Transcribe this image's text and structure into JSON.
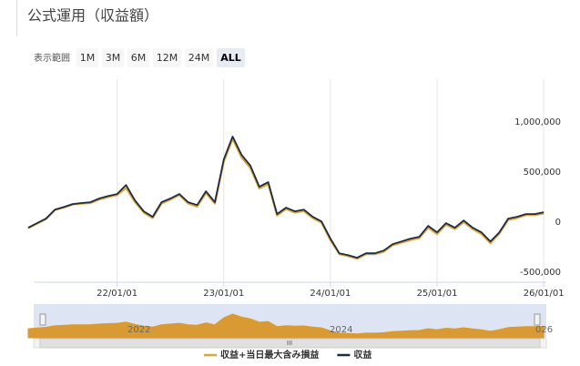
{
  "header": {
    "title": "公式運用（収益額）"
  },
  "range_selector": {
    "label": "表示範囲",
    "buttons": [
      "1M",
      "3M",
      "6M",
      "12M",
      "24M",
      "ALL"
    ],
    "selected": 5
  },
  "navigator": {
    "labels": [
      "2022",
      "2024",
      "026"
    ],
    "scrollbar": "III"
  },
  "chart_data": {
    "type": "line",
    "x": [
      "21/03/01",
      "21/04/01",
      "21/05/01",
      "21/06/01",
      "21/07/01",
      "21/08/01",
      "21/09/01",
      "21/10/01",
      "21/11/01",
      "21/12/01",
      "22/01/01",
      "22/02/01",
      "22/03/01",
      "22/04/01",
      "22/05/01",
      "22/06/01",
      "22/07/01",
      "22/08/01",
      "22/09/01",
      "22/10/01",
      "22/11/01",
      "22/12/01",
      "23/01/01",
      "23/02/01",
      "23/03/01",
      "23/04/01",
      "23/05/01",
      "23/06/01",
      "23/07/01",
      "23/08/01",
      "23/09/01",
      "23/10/01",
      "23/11/01",
      "23/12/01",
      "24/01/01",
      "24/02/01",
      "24/03/01",
      "24/04/01",
      "24/05/01",
      "24/06/01",
      "24/07/01",
      "24/08/01",
      "24/09/01",
      "24/10/01",
      "24/11/01",
      "24/12/01",
      "25/01/01",
      "25/02/01",
      "25/03/01",
      "25/04/01",
      "25/05/01",
      "25/06/01",
      "25/07/01",
      "25/08/01",
      "25/09/01",
      "25/10/01",
      "25/11/01",
      "25/12/01",
      "26/01/01"
    ],
    "series": [
      {
        "name": "収益+当日最大含み損益",
        "color": "#e0a534",
        "values": [
          -40000,
          5000,
          50000,
          140000,
          165000,
          195000,
          205000,
          210000,
          245000,
          270000,
          290000,
          360000,
          220000,
          115000,
          60000,
          205000,
          245000,
          290000,
          205000,
          175000,
          310000,
          205000,
          625000,
          850000,
          665000,
          560000,
          355000,
          400000,
          85000,
          150000,
          115000,
          130000,
          60000,
          15000,
          -160000,
          -300000,
          -320000,
          -345000,
          -300000,
          -300000,
          -275000,
          -210000,
          -185000,
          -160000,
          -140000,
          -35000,
          -100000,
          -5000,
          -50000,
          20000,
          -50000,
          -100000,
          -190000,
          -95000,
          40000,
          60000,
          90000,
          90000,
          105000
        ]
      },
      {
        "name": "収益",
        "color": "#1b2c46",
        "values": [
          -36000,
          10000,
          55000,
          145000,
          170000,
          200000,
          210000,
          218000,
          255000,
          280000,
          300000,
          390000,
          236000,
          127000,
          73000,
          218000,
          255000,
          300000,
          218000,
          190000,
          327000,
          218000,
          645000,
          873000,
          690000,
          582000,
          373000,
          418000,
          100000,
          164000,
          127000,
          145000,
          73000,
          27000,
          -145000,
          -291000,
          -309000,
          -336000,
          -291000,
          -291000,
          -264000,
          -200000,
          -173000,
          -145000,
          -127000,
          -18000,
          -82000,
          9000,
          -36000,
          36000,
          -36000,
          -82000,
          -173000,
          -82000,
          55000,
          73000,
          100000,
          100000,
          118000
        ]
      }
    ],
    "xlim": [
      "21/03/20",
      "26/01/10"
    ],
    "xticks": [
      "22/01/01",
      "23/01/01",
      "24/01/01",
      "25/01/01",
      "26/01/01"
    ],
    "ylim": [
      -580000,
      1445000
    ],
    "yticks": [
      {
        "value": -500000,
        "label": "-500,000"
      },
      0,
      {
        "value": 500000,
        "label": "500,000"
      },
      {
        "value": 1000000,
        "label": "1,000,000"
      }
    ],
    "grid": true
  }
}
